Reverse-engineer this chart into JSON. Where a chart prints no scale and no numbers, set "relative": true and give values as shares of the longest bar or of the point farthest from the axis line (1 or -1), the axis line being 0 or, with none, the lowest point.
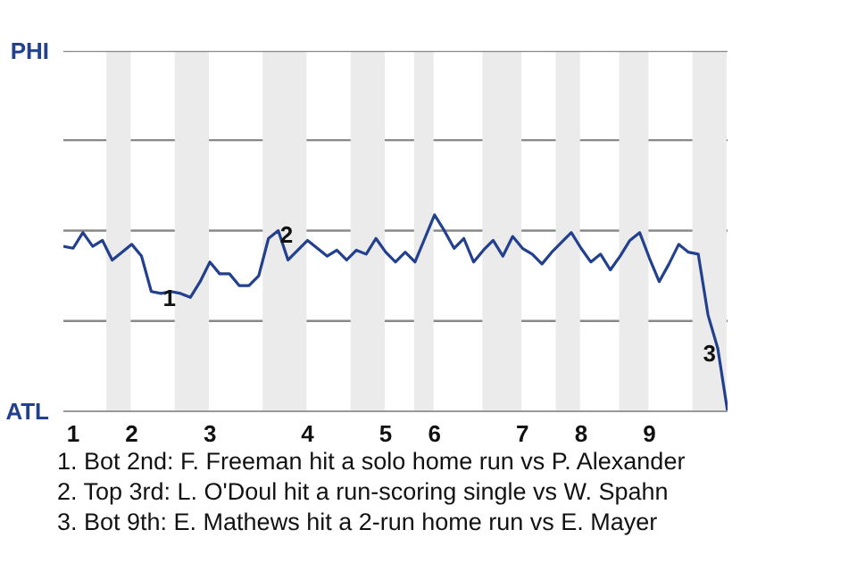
{
  "chart_data": {
    "type": "line",
    "categories": [
      null,
      "1",
      null,
      null,
      null,
      null,
      null,
      "2",
      null,
      null,
      null,
      null,
      null,
      null,
      null,
      "3",
      null,
      null,
      null,
      null,
      null,
      null,
      null,
      null,
      null,
      "4",
      null,
      null,
      null,
      null,
      null,
      null,
      null,
      "5",
      null,
      null,
      null,
      null,
      "6",
      null,
      null,
      null,
      null,
      null,
      null,
      null,
      null,
      "7",
      null,
      null,
      null,
      null,
      null,
      "8",
      null,
      null,
      null,
      null,
      null,
      null,
      "9",
      null,
      null,
      null,
      null,
      null,
      null,
      null,
      null
    ],
    "series": [
      {
        "color": "#23408e",
        "values": [
          0.84,
          0.83,
          0.91,
          0.84,
          0.87,
          0.77,
          0.81,
          0.85,
          0.79,
          0.61,
          0.6,
          0.61,
          0.6,
          0.58,
          0.66,
          0.76,
          0.7,
          0.7,
          0.64,
          0.64,
          0.69,
          0.88,
          0.92,
          0.77,
          0.82,
          0.87,
          0.83,
          0.79,
          0.82,
          0.77,
          0.82,
          0.8,
          0.88,
          0.81,
          0.76,
          0.81,
          0.76,
          0.88,
          1,
          0.92,
          0.83,
          0.88,
          0.76,
          0.82,
          0.87,
          0.79,
          0.89,
          0.83,
          0.8,
          0.75,
          0.81,
          0.86,
          0.91,
          0.83,
          0.76,
          0.8,
          0.72,
          0.79,
          0.87,
          0.91,
          0.78,
          0.66,
          0.75,
          0.85,
          0.81,
          0.8,
          0.49,
          0.32,
          0
        ]
      }
    ],
    "relative": true,
    "ref_lines": [
      {
        "axis": "y",
        "value": 0.46,
        "color": "#888888"
      },
      {
        "axis": "y",
        "value": 0.92,
        "color": "#888888"
      },
      {
        "axis": "y",
        "value": 1.38,
        "color": "#888888"
      }
    ],
    "line_style": "solid",
    "annotations": [
      "PHI",
      "ATL",
      {
        "text": "1",
        "y": 0.6
      },
      {
        "text": "2",
        "y": 0.92
      },
      {
        "text": "3",
        "y": 0.32
      },
      "1. Bot 2nd: F. Freeman hit a solo home run vs P. Alexander",
      "2. Top 3rd: L. O'Doul hit a run-scoring single vs W. Spahn",
      "3. Bot 9th: E. Mathews hit a 2-run home run vs E. Mayer"
    ]
  }
}
